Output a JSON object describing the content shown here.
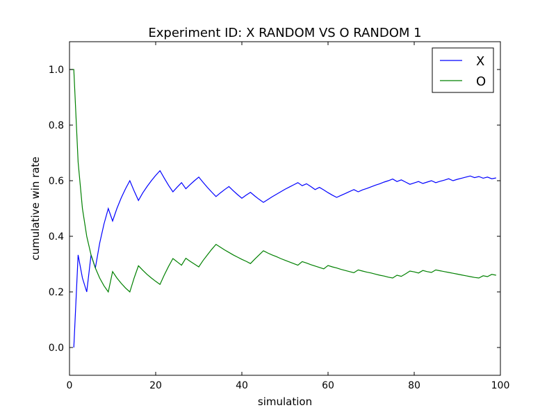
{
  "chart_data": {
    "type": "line",
    "title": "Experiment ID: X RANDOM VS O RANDOM 1",
    "xlabel": "simulation",
    "ylabel": "cumulative win rate",
    "xlim": [
      0,
      100
    ],
    "ylim": [
      -0.1,
      1.1
    ],
    "xticks": [
      "0",
      "20",
      "40",
      "60",
      "80",
      "100"
    ],
    "yticks": [
      "0.0",
      "0.2",
      "0.4",
      "0.6",
      "0.8",
      "1.0"
    ],
    "legend": "top-right",
    "grid": false,
    "series": [
      {
        "name": "X",
        "color": "#0000ff",
        "points": [
          [
            1,
            0
          ],
          [
            2,
            0.333
          ],
          [
            3,
            0.25
          ],
          [
            4,
            0.2
          ],
          [
            5,
            0.333
          ],
          [
            6,
            0.286
          ],
          [
            7,
            0.375
          ],
          [
            8,
            0.444
          ],
          [
            9,
            0.5
          ],
          [
            10,
            0.455
          ],
          [
            11,
            0.5
          ],
          [
            12,
            0.538
          ],
          [
            13,
            0.571
          ],
          [
            14,
            0.6
          ],
          [
            15,
            0.563
          ],
          [
            16,
            0.529
          ],
          [
            17,
            0.556
          ],
          [
            18,
            0.579
          ],
          [
            19,
            0.6
          ],
          [
            20,
            0.619
          ],
          [
            21,
            0.636
          ],
          [
            22,
            0.609
          ],
          [
            23,
            0.583
          ],
          [
            24,
            0.56
          ],
          [
            25,
            0.577
          ],
          [
            26,
            0.593
          ],
          [
            27,
            0.571
          ],
          [
            28,
            0.586
          ],
          [
            29,
            0.6
          ],
          [
            30,
            0.613
          ],
          [
            31,
            0.594
          ],
          [
            32,
            0.576
          ],
          [
            33,
            0.559
          ],
          [
            34,
            0.543
          ],
          [
            35,
            0.556
          ],
          [
            36,
            0.568
          ],
          [
            37,
            0.579
          ],
          [
            38,
            0.564
          ],
          [
            39,
            0.55
          ],
          [
            40,
            0.537
          ],
          [
            41,
            0.548
          ],
          [
            42,
            0.558
          ],
          [
            43,
            0.545
          ],
          [
            44,
            0.533
          ],
          [
            45,
            0.522
          ],
          [
            46,
            0.532
          ],
          [
            47,
            0.542
          ],
          [
            48,
            0.551
          ],
          [
            49,
            0.56
          ],
          [
            50,
            0.569
          ],
          [
            51,
            0.577
          ],
          [
            52,
            0.585
          ],
          [
            53,
            0.593
          ],
          [
            54,
            0.582
          ],
          [
            55,
            0.589
          ],
          [
            56,
            0.579
          ],
          [
            57,
            0.568
          ],
          [
            58,
            0.576
          ],
          [
            59,
            0.567
          ],
          [
            60,
            0.557
          ],
          [
            61,
            0.548
          ],
          [
            62,
            0.54
          ],
          [
            63,
            0.547
          ],
          [
            64,
            0.554
          ],
          [
            65,
            0.561
          ],
          [
            66,
            0.568
          ],
          [
            67,
            0.56
          ],
          [
            68,
            0.567
          ],
          [
            69,
            0.572
          ],
          [
            70,
            0.578
          ],
          [
            71,
            0.584
          ],
          [
            72,
            0.589
          ],
          [
            73,
            0.595
          ],
          [
            74,
            0.6
          ],
          [
            75,
            0.606
          ],
          [
            76,
            0.597
          ],
          [
            77,
            0.603
          ],
          [
            78,
            0.595
          ],
          [
            79,
            0.587
          ],
          [
            80,
            0.592
          ],
          [
            81,
            0.597
          ],
          [
            82,
            0.59
          ],
          [
            83,
            0.595
          ],
          [
            84,
            0.6
          ],
          [
            85,
            0.593
          ],
          [
            86,
            0.598
          ],
          [
            87,
            0.602
          ],
          [
            88,
            0.607
          ],
          [
            89,
            0.6
          ],
          [
            90,
            0.605
          ],
          [
            91,
            0.609
          ],
          [
            92,
            0.613
          ],
          [
            93,
            0.617
          ],
          [
            94,
            0.611
          ],
          [
            95,
            0.615
          ],
          [
            96,
            0.609
          ],
          [
            97,
            0.613
          ],
          [
            98,
            0.607
          ],
          [
            99,
            0.61
          ]
        ]
      },
      {
        "name": "O",
        "color": "#008000",
        "points": [
          [
            0,
            1.0
          ],
          [
            1,
            1.0
          ],
          [
            2,
            0.667
          ],
          [
            3,
            0.5
          ],
          [
            4,
            0.4
          ],
          [
            5,
            0.333
          ],
          [
            6,
            0.286
          ],
          [
            7,
            0.25
          ],
          [
            8,
            0.222
          ],
          [
            9,
            0.2
          ],
          [
            10,
            0.273
          ],
          [
            11,
            0.25
          ],
          [
            12,
            0.231
          ],
          [
            13,
            0.214
          ],
          [
            14,
            0.2
          ],
          [
            15,
            0.25
          ],
          [
            16,
            0.294
          ],
          [
            17,
            0.278
          ],
          [
            18,
            0.263
          ],
          [
            19,
            0.25
          ],
          [
            20,
            0.238
          ],
          [
            21,
            0.227
          ],
          [
            22,
            0.261
          ],
          [
            23,
            0.292
          ],
          [
            24,
            0.32
          ],
          [
            25,
            0.308
          ],
          [
            26,
            0.296
          ],
          [
            27,
            0.321
          ],
          [
            28,
            0.31
          ],
          [
            29,
            0.3
          ],
          [
            30,
            0.29
          ],
          [
            31,
            0.313
          ],
          [
            32,
            0.333
          ],
          [
            33,
            0.353
          ],
          [
            34,
            0.371
          ],
          [
            35,
            0.361
          ],
          [
            36,
            0.351
          ],
          [
            37,
            0.342
          ],
          [
            38,
            0.333
          ],
          [
            39,
            0.325
          ],
          [
            40,
            0.317
          ],
          [
            41,
            0.31
          ],
          [
            42,
            0.302
          ],
          [
            43,
            0.318
          ],
          [
            44,
            0.333
          ],
          [
            45,
            0.348
          ],
          [
            46,
            0.34
          ],
          [
            47,
            0.333
          ],
          [
            48,
            0.327
          ],
          [
            49,
            0.32
          ],
          [
            50,
            0.314
          ],
          [
            51,
            0.308
          ],
          [
            52,
            0.302
          ],
          [
            53,
            0.296
          ],
          [
            54,
            0.309
          ],
          [
            55,
            0.304
          ],
          [
            56,
            0.298
          ],
          [
            57,
            0.293
          ],
          [
            58,
            0.288
          ],
          [
            59,
            0.283
          ],
          [
            60,
            0.295
          ],
          [
            61,
            0.29
          ],
          [
            62,
            0.286
          ],
          [
            63,
            0.281
          ],
          [
            64,
            0.277
          ],
          [
            65,
            0.273
          ],
          [
            66,
            0.269
          ],
          [
            67,
            0.279
          ],
          [
            68,
            0.275
          ],
          [
            69,
            0.271
          ],
          [
            70,
            0.268
          ],
          [
            71,
            0.264
          ],
          [
            72,
            0.26
          ],
          [
            73,
            0.257
          ],
          [
            74,
            0.253
          ],
          [
            75,
            0.25
          ],
          [
            76,
            0.26
          ],
          [
            77,
            0.256
          ],
          [
            78,
            0.265
          ],
          [
            79,
            0.275
          ],
          [
            80,
            0.272
          ],
          [
            81,
            0.268
          ],
          [
            82,
            0.277
          ],
          [
            83,
            0.273
          ],
          [
            84,
            0.27
          ],
          [
            85,
            0.279
          ],
          [
            86,
            0.276
          ],
          [
            87,
            0.273
          ],
          [
            88,
            0.27
          ],
          [
            89,
            0.267
          ],
          [
            90,
            0.264
          ],
          [
            91,
            0.261
          ],
          [
            92,
            0.258
          ],
          [
            93,
            0.255
          ],
          [
            94,
            0.252
          ],
          [
            95,
            0.25
          ],
          [
            96,
            0.258
          ],
          [
            97,
            0.255
          ],
          [
            98,
            0.263
          ],
          [
            99,
            0.26
          ]
        ]
      }
    ]
  }
}
